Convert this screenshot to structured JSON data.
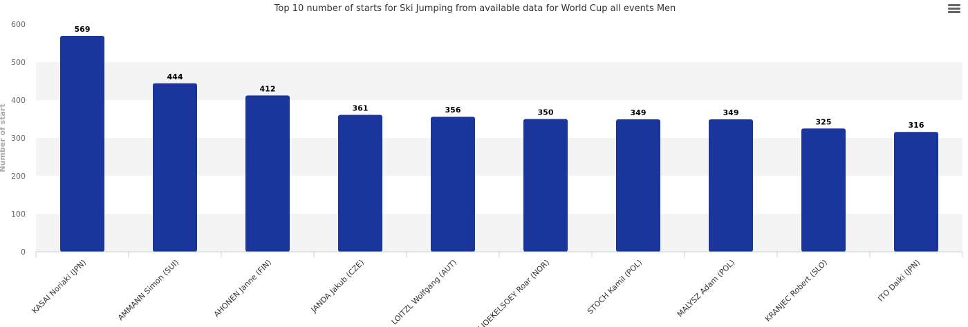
{
  "chart_data": {
    "type": "bar",
    "title": "Top 10 number of starts for Ski Jumping from available data for World Cup all events Men",
    "ylabel": "Number of start",
    "xlabel": "",
    "ylim": [
      0,
      600
    ],
    "yticks": [
      0,
      100,
      200,
      300,
      400,
      500,
      600
    ],
    "grid": "alternating bands",
    "categories": [
      "KASAI Noriaki (JPN)",
      "AMMANN Simon (SUI)",
      "AHONEN Janne (FIN)",
      "JANDA Jakub (CZE)",
      "LOITZL Wolfgang (AUT)",
      "LJOEKELSOEY Roar (NOR)",
      "STOCH Kamil (POL)",
      "MALYSZ Adam (POL)",
      "KRANJEC Robert (SLO)",
      "ITO Daiki (JPN)"
    ],
    "values": [
      569,
      444,
      412,
      361,
      356,
      350,
      349,
      349,
      325,
      316
    ],
    "colors": {
      "bar": "#1a369c",
      "band": "#f4f4f4",
      "axis": "#c0d0e0"
    }
  },
  "menu": {
    "icon": "hamburger-menu-icon"
  }
}
